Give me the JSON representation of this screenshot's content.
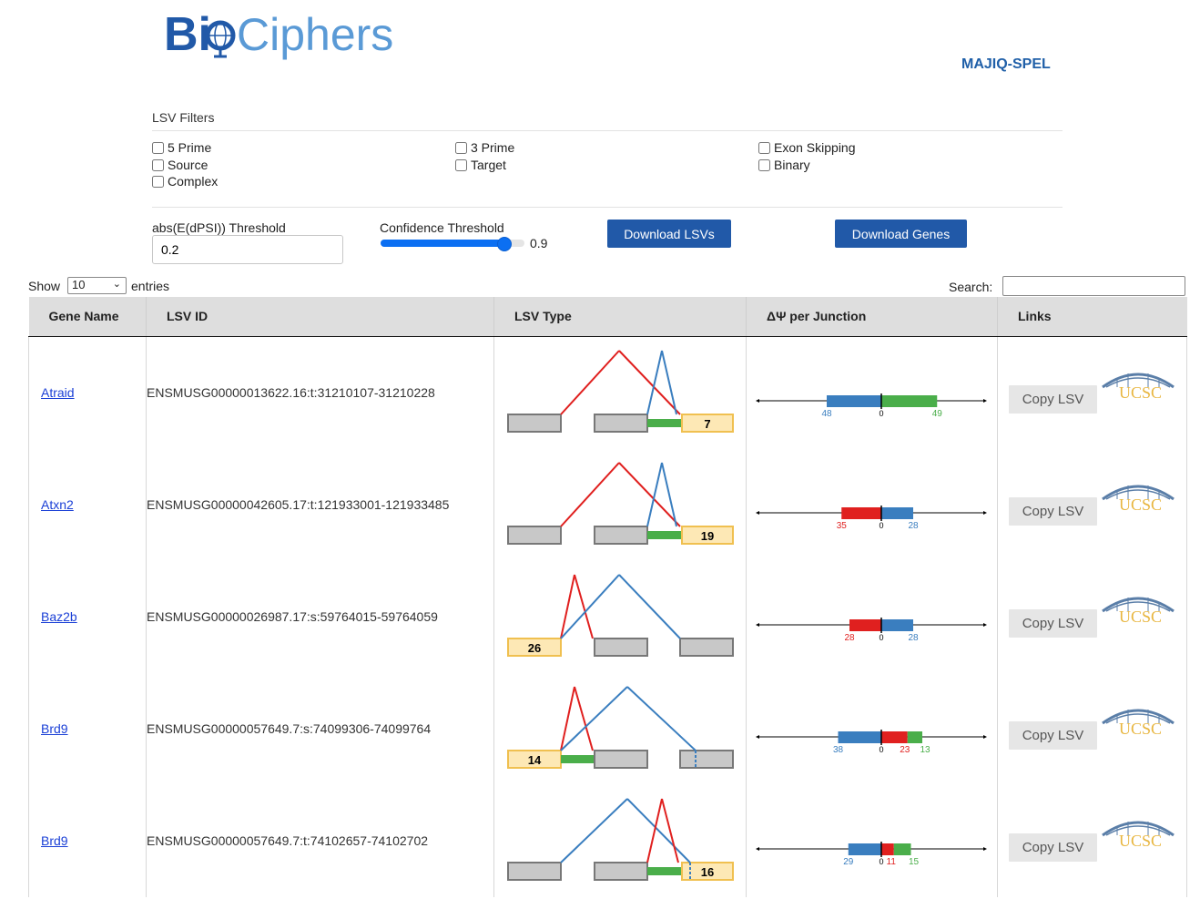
{
  "header": {
    "logo_text_a": "Bi",
    "logo_text_b": "Ciphers",
    "app_title": "MAJIQ-SPEL"
  },
  "filters": {
    "title": "LSV Filters",
    "options": [
      "5 Prime",
      "3 Prime",
      "Exon Skipping",
      "Source",
      "Target",
      "Binary",
      "Complex"
    ]
  },
  "threshold": {
    "label": "abs(E(dPSI)) Threshold",
    "value": "0.2"
  },
  "confidence": {
    "label": "Confidence Threshold",
    "value": "0.9",
    "level": 0.9
  },
  "buttons": {
    "download_lsvs": "Download LSVs",
    "download_genes": "Download Genes"
  },
  "table_controls": {
    "show_label": "Show",
    "page_size": "10",
    "entries_label": "entries",
    "search_label": "Search:"
  },
  "table": {
    "headers": [
      "Gene Name",
      "LSV ID",
      "LSV Type",
      "ΔΨ per Junction",
      "Links"
    ],
    "copy_label": "Copy LSV",
    "ucsc_label": "UCSC",
    "rows": [
      {
        "gene": "Atraid",
        "lsv_id": "ENSMUSG00000013622.16:t:31210107-31210228",
        "exon_label": "7",
        "bars": [
          {
            "value": "48",
            "color": "#3a7ebf"
          },
          {
            "value": "49",
            "color": "#4aae4a"
          }
        ]
      },
      {
        "gene": "Atxn2",
        "lsv_id": "ENSMUSG00000042605.17:t:121933001-121933485",
        "exon_label": "19",
        "bars": [
          {
            "value": "35",
            "color": "#e0201f"
          },
          {
            "value": "28",
            "color": "#3a7ebf"
          }
        ]
      },
      {
        "gene": "Baz2b",
        "lsv_id": "ENSMUSG00000026987.17:s:59764015-59764059",
        "exon_label": "26",
        "bars": [
          {
            "value": "28",
            "color": "#e0201f"
          },
          {
            "value": "28",
            "color": "#3a7ebf"
          }
        ]
      },
      {
        "gene": "Brd9",
        "lsv_id": "ENSMUSG00000057649.7:s:74099306-74099764",
        "exon_label": "14",
        "bars": [
          {
            "value": "38",
            "color": "#3a7ebf"
          },
          {
            "value": "23",
            "color": "#e0201f"
          },
          {
            "value": "13",
            "color": "#4aae4a"
          }
        ]
      },
      {
        "gene": "Brd9",
        "lsv_id": "ENSMUSG00000057649.7:t:74102657-74102702",
        "exon_label": "16",
        "bars": [
          {
            "value": "29",
            "color": "#3a7ebf"
          },
          {
            "value": "11",
            "color": "#e0201f"
          },
          {
            "value": "15",
            "color": "#4aae4a"
          }
        ]
      }
    ]
  },
  "colors": {
    "brand_blue": "#2159a8",
    "junction_red": "#e0201f",
    "junction_blue": "#3a7ebf",
    "junction_green": "#4aae4a",
    "reference_exon": "#fde8b5"
  }
}
